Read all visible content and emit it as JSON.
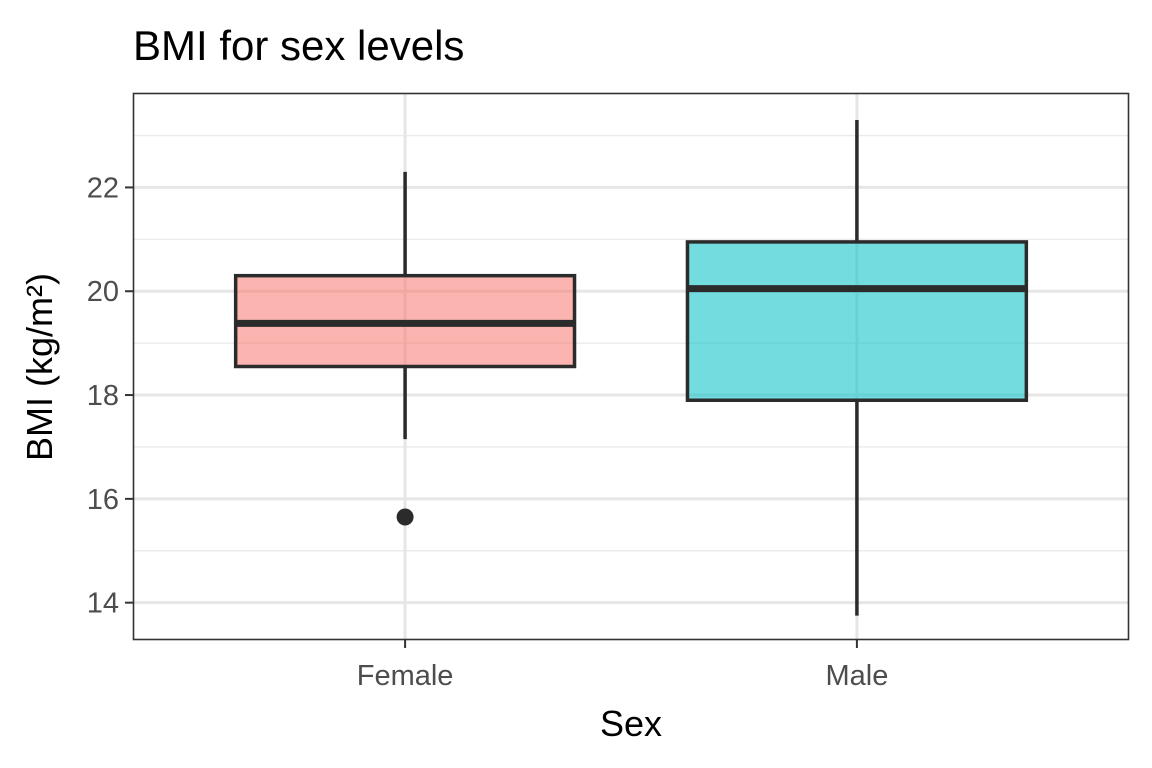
{
  "chart_data": {
    "type": "boxplot",
    "title": "BMI for sex levels",
    "xlabel": "Sex",
    "ylabel": "BMI (kg/m²)",
    "categories": [
      "Female",
      "Male"
    ],
    "ylim": [
      13.3,
      23.8
    ],
    "yticks": [
      14,
      16,
      18,
      20,
      22
    ],
    "grid": true,
    "legend": "none",
    "boxes": [
      {
        "category": "Female",
        "whisker_low": 17.15,
        "q1": 18.55,
        "median": 19.38,
        "q3": 20.3,
        "whisker_high": 22.3,
        "outliers": [
          15.65
        ],
        "fill": "#f8766d"
      },
      {
        "category": "Male",
        "whisker_low": 13.75,
        "q1": 17.9,
        "median": 20.05,
        "q3": 20.95,
        "whisker_high": 23.3,
        "outliers": [],
        "fill": "#00bfc4"
      }
    ]
  }
}
